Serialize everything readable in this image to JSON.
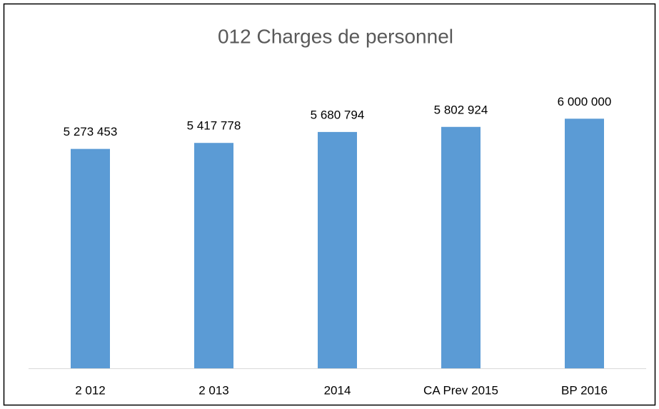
{
  "chart_data": {
    "type": "bar",
    "title": "012 Charges de personnel",
    "categories": [
      "2 012",
      "2 013",
      "2014",
      "CA Prev 2015",
      "BP 2016"
    ],
    "values": [
      5273453,
      5417778,
      5680794,
      5802924,
      6000000
    ],
    "value_labels": [
      "5 273 453",
      "5 417 778",
      "5 680 794",
      "5 802 924",
      "6 000 000"
    ],
    "color": "#5b9bd5",
    "ylim": [
      0,
      7000000
    ]
  }
}
